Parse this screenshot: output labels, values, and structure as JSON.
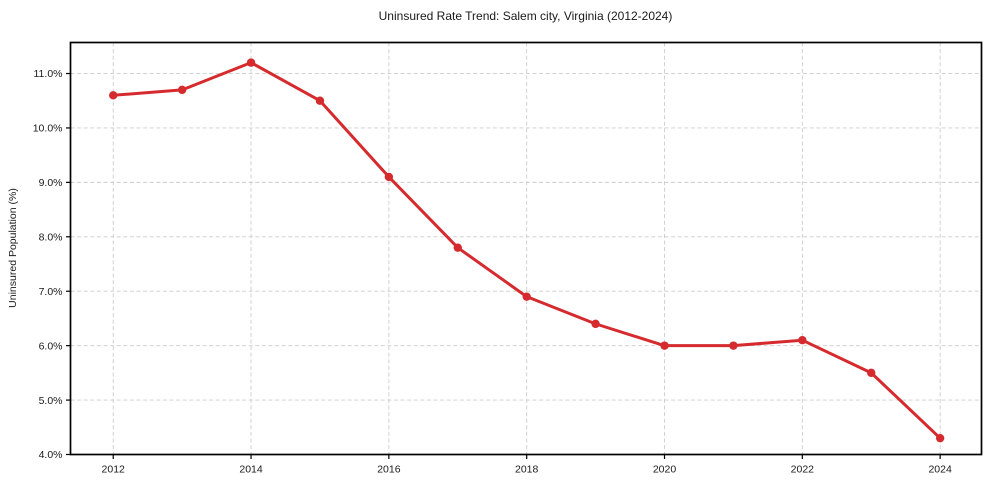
{
  "chart_data": {
    "type": "line",
    "title": "Uninsured Rate Trend: Salem city, Virginia (2012-2024)",
    "xlabel": "",
    "ylabel": "Uninsured Population (%)",
    "x": [
      2012,
      2013,
      2014,
      2015,
      2016,
      2017,
      2018,
      2019,
      2020,
      2021,
      2022,
      2023,
      2024
    ],
    "values": [
      10.6,
      10.7,
      11.2,
      10.5,
      9.1,
      7.8,
      6.9,
      6.4,
      6.0,
      6.0,
      6.1,
      5.5,
      4.3
    ],
    "xticks": [
      2012,
      2014,
      2016,
      2018,
      2020,
      2022,
      2024
    ],
    "xtick_labels": [
      "2012",
      "2014",
      "2016",
      "2018",
      "2020",
      "2022",
      "2024"
    ],
    "yticks": [
      4.0,
      5.0,
      6.0,
      7.0,
      8.0,
      9.0,
      10.0,
      11.0
    ],
    "ytick_labels": [
      "4.0%",
      "5.0%",
      "6.0%",
      "7.0%",
      "8.0%",
      "9.0%",
      "10.0%",
      "11.0%"
    ],
    "xlim": [
      2011.38,
      2024.6
    ],
    "ylim": [
      4.0,
      11.57
    ],
    "grid": true,
    "grid_style": "dashed",
    "legend": false,
    "marker": "circle",
    "colors": {
      "line": "#d62b2e",
      "grid": "#cccccc",
      "frame": "#000000",
      "text": "#1a1a1a",
      "background": "#ffffff"
    }
  }
}
